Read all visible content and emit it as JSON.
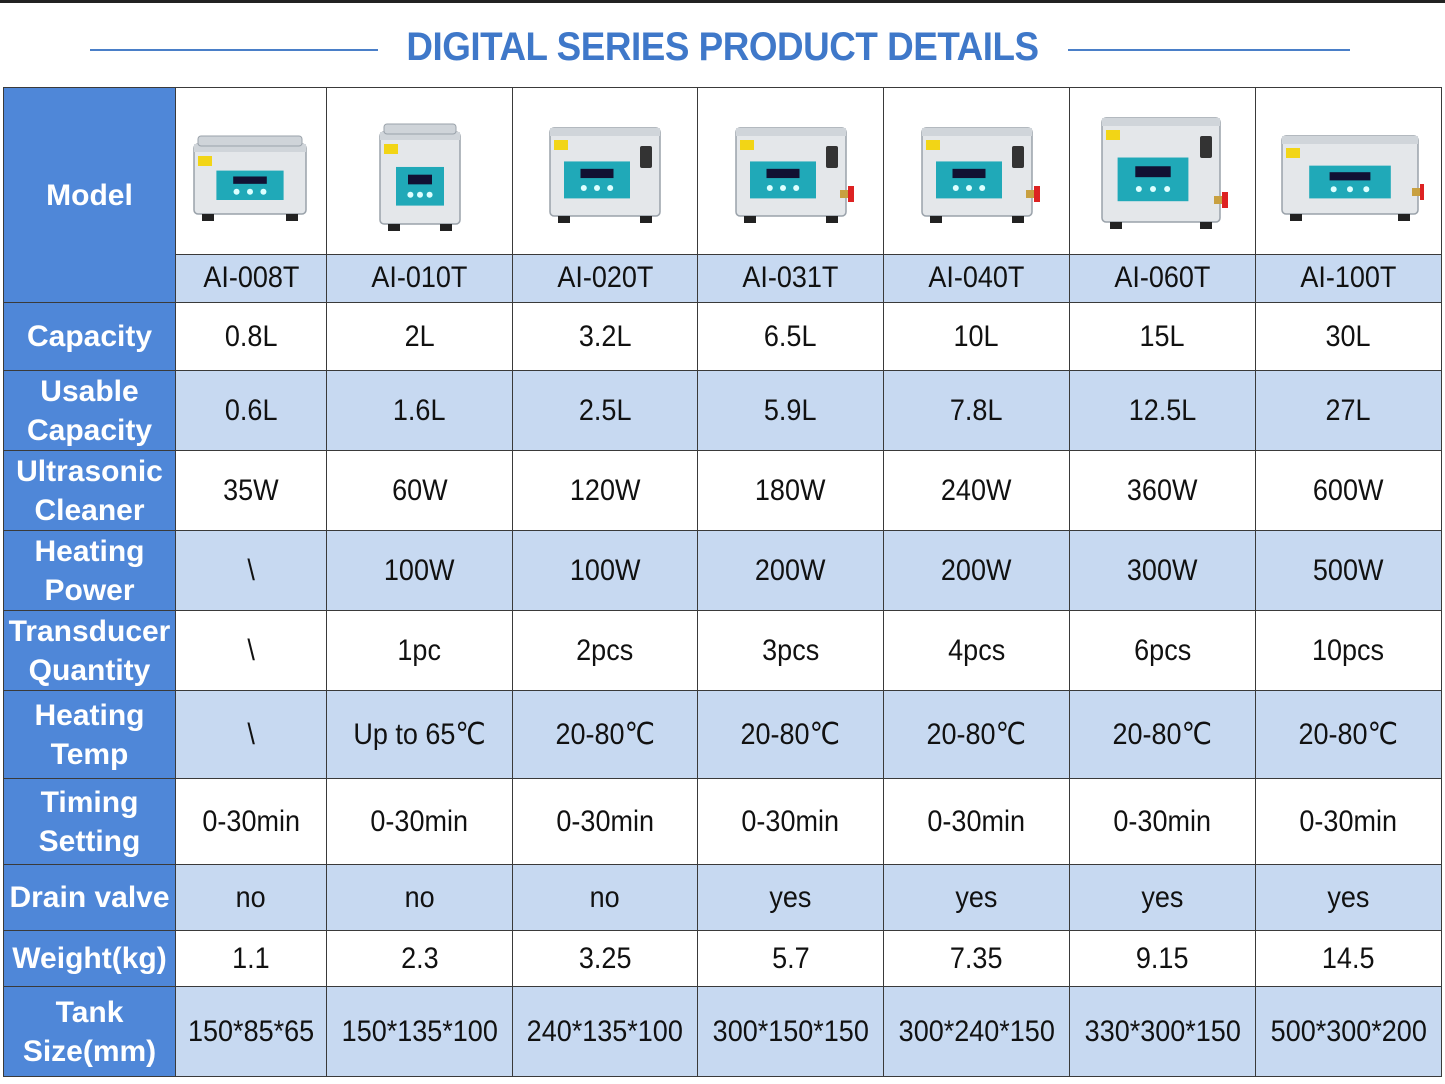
{
  "title": "DIGITAL SERIES PRODUCT DETAILS",
  "header": {
    "model_label": "Model"
  },
  "models": [
    "AI-008T",
    "AI-010T",
    "AI-020T",
    "AI-031T",
    "AI-040T",
    "AI-060T",
    "AI-100T"
  ],
  "product_images": [
    {
      "icon": "ultrasonic-cleaner-icon",
      "variant": "small-lid"
    },
    {
      "icon": "ultrasonic-cleaner-icon",
      "variant": "tall-lid"
    },
    {
      "icon": "ultrasonic-cleaner-icon",
      "variant": "handle"
    },
    {
      "icon": "ultrasonic-cleaner-icon",
      "variant": "handle-valve"
    },
    {
      "icon": "ultrasonic-cleaner-icon",
      "variant": "handle-valve"
    },
    {
      "icon": "ultrasonic-cleaner-icon",
      "variant": "handle-valve-large"
    },
    {
      "icon": "ultrasonic-cleaner-icon",
      "variant": "wide-valve"
    }
  ],
  "rows": [
    {
      "label": "Capacity",
      "values": [
        "0.8L",
        "2L",
        "3.2L",
        "6.5L",
        "10L",
        "15L",
        "30L"
      ]
    },
    {
      "label": "Usable Capacity",
      "values": [
        "0.6L",
        "1.6L",
        "2.5L",
        "5.9L",
        "7.8L",
        "12.5L",
        "27L"
      ]
    },
    {
      "label": "Ultrasonic Cleaner",
      "values": [
        "35W",
        "60W",
        "120W",
        "180W",
        "240W",
        "360W",
        "600W"
      ]
    },
    {
      "label": "Heating Power",
      "values": [
        "\\",
        "100W",
        "100W",
        "200W",
        "200W",
        "300W",
        "500W"
      ]
    },
    {
      "label": "Transducer Quantity",
      "values": [
        "\\",
        "1pc",
        "2pcs",
        "3pcs",
        "4pcs",
        "6pcs",
        "10pcs"
      ]
    },
    {
      "label": "Heating Temp",
      "values": [
        "\\",
        "Up to 65℃",
        "20-80℃",
        "20-80℃",
        "20-80℃",
        "20-80℃",
        "20-80℃"
      ]
    },
    {
      "label": "Timing Setting",
      "values": [
        "0-30min",
        "0-30min",
        "0-30min",
        "0-30min",
        "0-30min",
        "0-30min",
        "0-30min"
      ]
    },
    {
      "label": "Drain valve",
      "values": [
        "no",
        "no",
        "no",
        "yes",
        "yes",
        "yes",
        "yes"
      ]
    },
    {
      "label": "Weight(kg)",
      "values": [
        "1.1",
        "2.3",
        "3.25",
        "5.7",
        "7.35",
        "9.15",
        "14.5"
      ]
    },
    {
      "label": "Tank Size(mm)",
      "values": [
        "150*85*65",
        "150*135*100",
        "240*135*100",
        "300*150*150",
        "300*240*150",
        "330*300*150",
        "500*300*200"
      ]
    }
  ],
  "colors": {
    "header_blue": "#4f87d8",
    "title_blue": "#3f78c9",
    "shade_blue": "#c7d9f1",
    "panel_teal": "#20a9b8"
  }
}
